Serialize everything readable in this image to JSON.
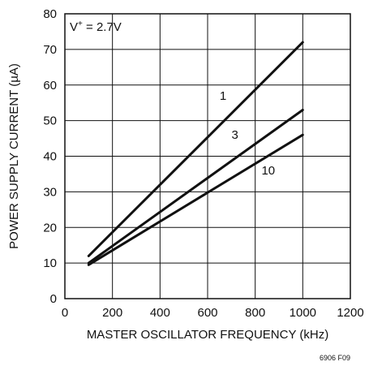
{
  "chart_data": {
    "type": "line",
    "xlabel": "MASTER OSCILLATOR FREQUENCY (kHz)",
    "ylabel": "POWER SUPPLY CURRENT (µA)",
    "xlim": [
      0,
      1200
    ],
    "ylim": [
      0,
      80
    ],
    "x_ticks": [
      "0",
      "200",
      "400",
      "600",
      "800",
      "1000",
      "1200"
    ],
    "y_ticks": [
      "0",
      "10",
      "20",
      "30",
      "40",
      "50",
      "60",
      "70",
      "80"
    ],
    "grid": true,
    "annotation": {
      "main": "V",
      "sup": "+",
      "rest": " = 2.7V"
    },
    "figure_code": "6906 F09",
    "series": [
      {
        "name": "1",
        "x": [
          100,
          1000
        ],
        "y": [
          12,
          72
        ]
      },
      {
        "name": "3",
        "x": [
          100,
          1000
        ],
        "y": [
          10,
          53
        ]
      },
      {
        "name": "10",
        "x": [
          100,
          1000
        ],
        "y": [
          9.5,
          46
        ]
      }
    ],
    "series_label_pos": [
      {
        "x": 665,
        "y": 57
      },
      {
        "x": 715,
        "y": 46
      },
      {
        "x": 855,
        "y": 36
      }
    ]
  }
}
